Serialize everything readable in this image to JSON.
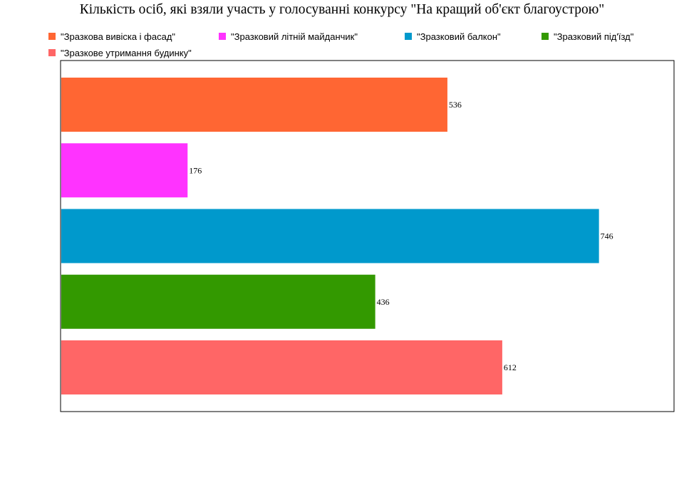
{
  "chart_data": {
    "type": "bar",
    "orientation": "horizontal",
    "title": "Кількість осіб, які взяли участь у голосуванні конкурсу \"На кращий об'єкт благоустрою\"",
    "categories": [
      " \"Зразкова вивіска і фасад\"",
      "\"Зразковий літній майданчик\"",
      "\"Зразковий балкон\"",
      "\"Зразковий під'їзд\"",
      "\"Зразкове утримання будинку\""
    ],
    "values": [
      536,
      176,
      746,
      436,
      612
    ],
    "colors": [
      "#FF6633",
      "#FF33FF",
      "#0099CC",
      "#339900",
      "#FF6666"
    ],
    "xlim": [
      0,
      850
    ],
    "grid": false,
    "data_labels": true,
    "legend": "top",
    "xlabel": "",
    "ylabel": ""
  }
}
